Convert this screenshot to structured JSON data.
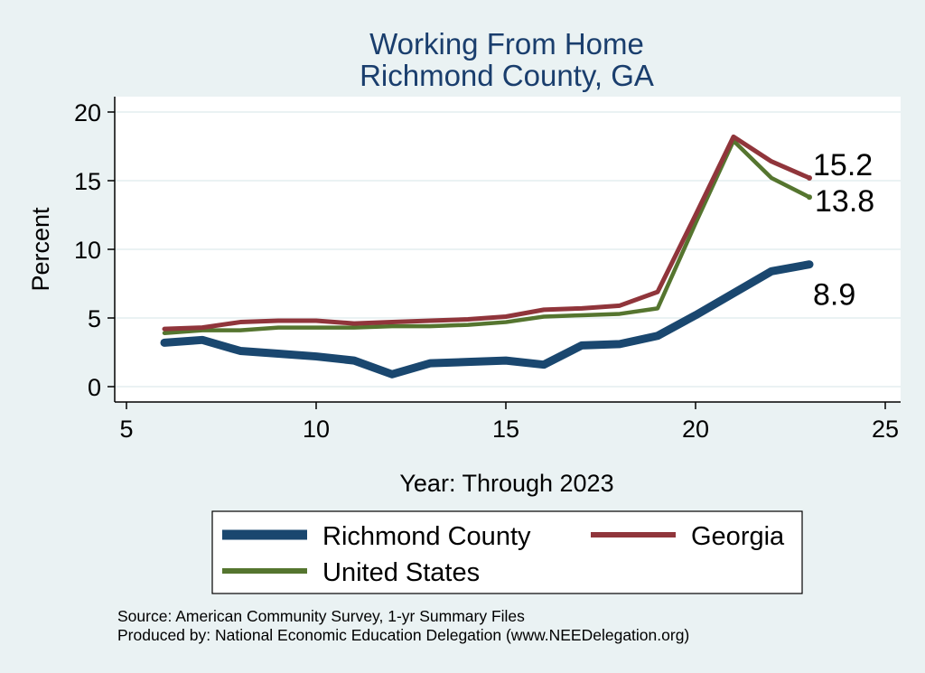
{
  "chart_data": {
    "type": "line",
    "title": [
      "Working From Home",
      "Richmond County, GA"
    ],
    "xlabel": "Year: Through 2023",
    "ylabel": "Percent",
    "xlim": [
      5,
      25
    ],
    "ylim": [
      0,
      20
    ],
    "xticks": [
      5,
      10,
      15,
      20,
      25
    ],
    "yticks": [
      0,
      5,
      10,
      15,
      20
    ],
    "grid": "horizontal",
    "legend_position": "bottom",
    "series": [
      {
        "name": "Richmond County",
        "color": "#1a476f",
        "x": [
          6,
          7,
          8,
          9,
          10,
          11,
          12,
          13,
          14,
          15,
          16,
          17,
          18,
          19,
          20,
          21,
          22,
          23
        ],
        "values": [
          3.2,
          3.4,
          2.6,
          2.4,
          2.2,
          1.9,
          0.9,
          1.7,
          1.8,
          1.9,
          1.6,
          3.0,
          3.1,
          3.7,
          5.2,
          6.8,
          8.4,
          8.9
        ],
        "end_label": "8.9"
      },
      {
        "name": "Georgia",
        "color": "#90353b",
        "x": [
          6,
          7,
          8,
          9,
          10,
          11,
          12,
          13,
          14,
          15,
          16,
          17,
          18,
          19,
          20,
          21,
          22,
          23
        ],
        "values": [
          4.2,
          4.3,
          4.7,
          4.8,
          4.8,
          4.6,
          4.7,
          4.8,
          4.9,
          5.1,
          5.6,
          5.7,
          5.9,
          6.9,
          12.5,
          18.2,
          16.4,
          15.2
        ],
        "end_label": "15.2"
      },
      {
        "name": "United States",
        "color": "#55752f",
        "x": [
          6,
          7,
          8,
          9,
          10,
          11,
          12,
          13,
          14,
          15,
          16,
          17,
          18,
          19,
          20,
          21,
          22,
          23
        ],
        "values": [
          3.9,
          4.1,
          4.1,
          4.3,
          4.3,
          4.3,
          4.4,
          4.4,
          4.5,
          4.7,
          5.1,
          5.2,
          5.3,
          5.7,
          11.9,
          17.9,
          15.2,
          13.8
        ],
        "end_label": "13.8"
      }
    ]
  },
  "source": {
    "line1": "Source: American Community Survey, 1-yr Summary Files",
    "line2": "Produced by: National Economic Education Delegation (www.NEEDelegation.org)"
  }
}
